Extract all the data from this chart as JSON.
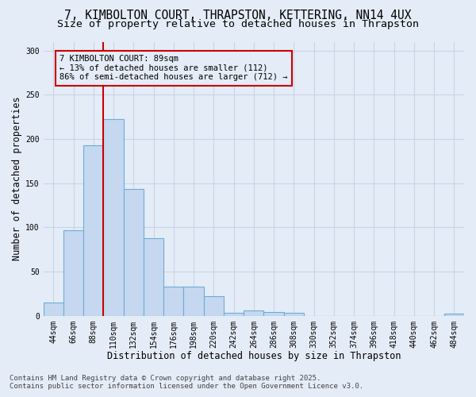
{
  "title_line1": "7, KIMBOLTON COURT, THRAPSTON, KETTERING, NN14 4UX",
  "title_line2": "Size of property relative to detached houses in Thrapston",
  "xlabel": "Distribution of detached houses by size in Thrapston",
  "ylabel": "Number of detached properties",
  "categories": [
    "44sqm",
    "66sqm",
    "88sqm",
    "110sqm",
    "132sqm",
    "154sqm",
    "176sqm",
    "198sqm",
    "220sqm",
    "242sqm",
    "264sqm",
    "286sqm",
    "308sqm",
    "330sqm",
    "352sqm",
    "374sqm",
    "396sqm",
    "418sqm",
    "440sqm",
    "462sqm",
    "484sqm"
  ],
  "values": [
    15,
    97,
    193,
    222,
    143,
    88,
    33,
    33,
    22,
    3,
    6,
    4,
    3,
    0,
    0,
    0,
    0,
    0,
    0,
    0,
    2
  ],
  "bar_color": "#c5d8f0",
  "bar_edge_color": "#6baed6",
  "vline_color": "#cc0000",
  "annotation_text": "7 KIMBOLTON COURT: 89sqm\n← 13% of detached houses are smaller (112)\n86% of semi-detached houses are larger (712) →",
  "ylim": [
    0,
    310
  ],
  "yticks": [
    0,
    50,
    100,
    150,
    200,
    250,
    300
  ],
  "grid_color": "#c8d4e8",
  "background_color": "#e4ecf7",
  "footer_line1": "Contains HM Land Registry data © Crown copyright and database right 2025.",
  "footer_line2": "Contains public sector information licensed under the Open Government Licence v3.0.",
  "title_fontsize": 10.5,
  "subtitle_fontsize": 9.5,
  "axis_label_fontsize": 8.5,
  "tick_fontsize": 7,
  "annotation_fontsize": 7.5,
  "footer_fontsize": 6.5,
  "vline_bar_index": 2
}
